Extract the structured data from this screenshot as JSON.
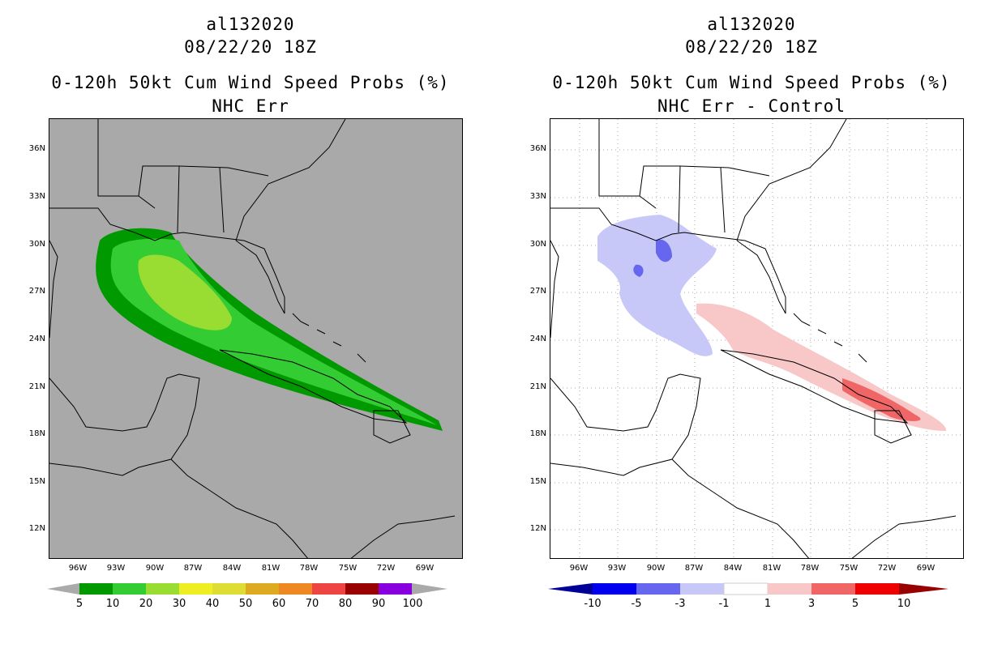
{
  "left": {
    "title_line1": "al132020",
    "title_line2": "08/22/20 18Z",
    "title_line3": "0-120h 50kt Cum Wind Speed Probs (%)",
    "title_line4": "NHC Err",
    "background_color": "#a9a9a9",
    "colorbar": {
      "labels": [
        "5",
        "10",
        "20",
        "30",
        "40",
        "50",
        "60",
        "70",
        "80",
        "90",
        "100"
      ],
      "colors": [
        "#009900",
        "#33cc33",
        "#99dd33",
        "#eeee22",
        "#dddd33",
        "#ddaa22",
        "#ee8822",
        "#ee4444",
        "#990000",
        "#8800dd"
      ]
    }
  },
  "right": {
    "title_line1": "al132020",
    "title_line2": "08/22/20 18Z",
    "title_line3": "0-120h 50kt Cum Wind Speed Probs (%)",
    "title_line4": "NHC Err - Control",
    "background_color": "#ffffff",
    "colorbar": {
      "labels": [
        "-10",
        "-5",
        "-3",
        "-1",
        "1",
        "3",
        "5",
        "10"
      ],
      "colors": [
        "#000099",
        "#0000ee",
        "#6666ee",
        "#c8c8f8",
        "#ffffff",
        "#f8c8c8",
        "#f06666",
        "#ee0000",
        "#990000"
      ]
    }
  },
  "axes": {
    "lat_labels": [
      "36N",
      "33N",
      "30N",
      "27N",
      "24N",
      "21N",
      "18N",
      "15N",
      "12N"
    ],
    "lon_labels": [
      "96W",
      "93W",
      "90W",
      "87W",
      "84W",
      "81W",
      "78W",
      "75W",
      "72W",
      "69W"
    ]
  }
}
